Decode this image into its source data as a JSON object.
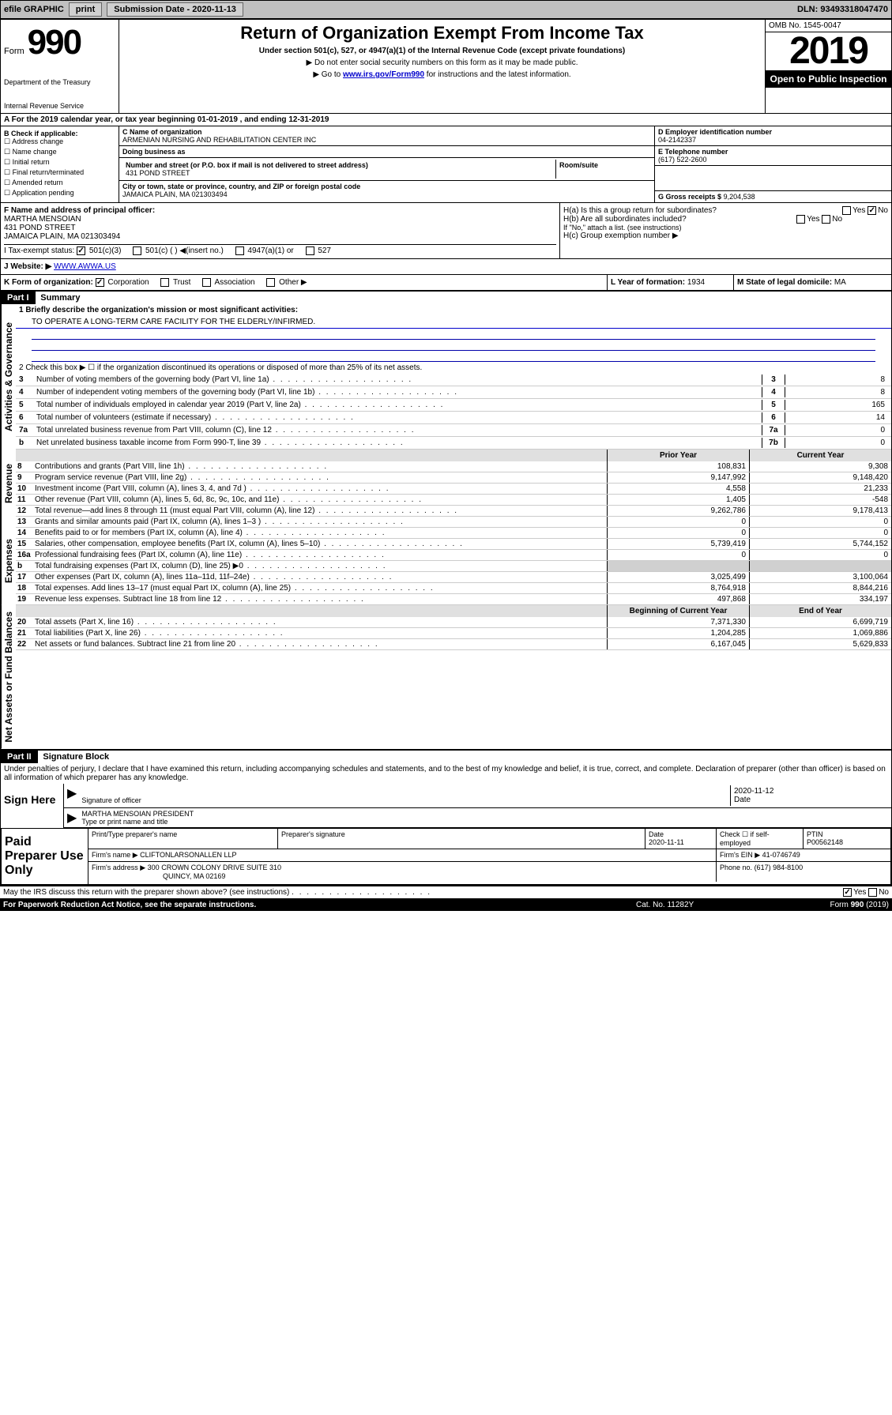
{
  "top_bar": {
    "efile": "efile GRAPHIC",
    "print": "print",
    "sub_date_label": "Submission Date - 2020-11-13",
    "dln": "DLN: 93493318047470"
  },
  "header": {
    "form_prefix": "Form",
    "form_number": "990",
    "dept1": "Department of the Treasury",
    "dept2": "Internal Revenue Service",
    "title": "Return of Organization Exempt From Income Tax",
    "subtitle": "Under section 501(c), 527, or 4947(a)(1) of the Internal Revenue Code (except private foundations)",
    "note1": "▶ Do not enter social security numbers on this form as it may be made public.",
    "note2_pre": "▶ Go to ",
    "note2_link": "www.irs.gov/Form990",
    "note2_post": " for instructions and the latest information.",
    "omb": "OMB No. 1545-0047",
    "year": "2019",
    "open": "Open to Public Inspection"
  },
  "row_a": "A For the 2019 calendar year, or tax year beginning 01-01-2019    , and ending 12-31-2019",
  "section_b": {
    "label": "B Check if applicable:",
    "items": [
      "Address change",
      "Name change",
      "Initial return",
      "Final return/terminated",
      "Amended return",
      "Application pending"
    ]
  },
  "section_c": {
    "name_label": "C Name of organization",
    "name": "ARMENIAN NURSING AND REHABILITATION CENTER INC",
    "dba_label": "Doing business as",
    "dba": "",
    "addr_label": "Number and street (or P.O. box if mail is not delivered to street address)",
    "room_label": "Room/suite",
    "addr": "431 POND STREET",
    "city_label": "City or town, state or province, country, and ZIP or foreign postal code",
    "city": "JAMAICA PLAIN, MA  021303494"
  },
  "section_d": {
    "label": "D Employer identification number",
    "ein": "04-2142337"
  },
  "section_e": {
    "label": "E Telephone number",
    "phone": "(617) 522-2600"
  },
  "section_g": {
    "label": "G Gross receipts $",
    "amount": "9,204,538"
  },
  "section_f": {
    "label": "F Name and address of principal officer:",
    "name": "MARTHA MENSOIAN",
    "addr1": "431 POND STREET",
    "addr2": "JAMAICA PLAIN, MA  021303494"
  },
  "section_h": {
    "a_label": "H(a)  Is this a group return for subordinates?",
    "a_yes": "Yes",
    "a_no": "No",
    "b_label": "H(b)  Are all subordinates included?",
    "b_note": "If \"No,\" attach a list. (see instructions)",
    "c_label": "H(c)  Group exemption number ▶"
  },
  "section_i": {
    "label": "I    Tax-exempt status:",
    "c3": "501(c)(3)",
    "c_other": "501(c) (  ) ◀(insert no.)",
    "a1": "4947(a)(1) or",
    "s527": "527"
  },
  "section_j": {
    "label": "J   Website: ▶",
    "url": "WWW.AWWA.US"
  },
  "section_k": {
    "label": "K Form of organization:",
    "corp": "Corporation",
    "trust": "Trust",
    "assoc": "Association",
    "other": "Other ▶"
  },
  "section_l": {
    "label": "L Year of formation:",
    "year": "1934"
  },
  "section_m": {
    "label": "M State of legal domicile:",
    "state": "MA"
  },
  "part1": {
    "header": "Part I",
    "title": "Summary",
    "tab_gov": "Activities & Governance",
    "tab_rev": "Revenue",
    "tab_exp": "Expenses",
    "tab_net": "Net Assets or Fund Balances",
    "line1_label": "1  Briefly describe the organization's mission or most significant activities:",
    "line1_text": "TO OPERATE A LONG-TERM CARE FACILITY FOR THE ELDERLY/INFIRMED.",
    "line2": "2   Check this box ▶ ☐ if the organization discontinued its operations or disposed of more than 25% of its net assets.",
    "lines_gov": [
      {
        "n": "3",
        "desc": "Number of voting members of the governing body (Part VI, line 1a)",
        "box": "3",
        "val": "8"
      },
      {
        "n": "4",
        "desc": "Number of independent voting members of the governing body (Part VI, line 1b)",
        "box": "4",
        "val": "8"
      },
      {
        "n": "5",
        "desc": "Total number of individuals employed in calendar year 2019 (Part V, line 2a)",
        "box": "5",
        "val": "165"
      },
      {
        "n": "6",
        "desc": "Total number of volunteers (estimate if necessary)",
        "box": "6",
        "val": "14"
      },
      {
        "n": "7a",
        "desc": "Total unrelated business revenue from Part VIII, column (C), line 12",
        "box": "7a",
        "val": "0"
      },
      {
        "n": "b",
        "desc": "Net unrelated business taxable income from Form 990-T, line 39",
        "box": "7b",
        "val": "0"
      }
    ],
    "col_hdr_py": "Prior Year",
    "col_hdr_cy": "Current Year",
    "lines_rev": [
      {
        "n": "8",
        "desc": "Contributions and grants (Part VIII, line 1h)",
        "py": "108,831",
        "cy": "9,308"
      },
      {
        "n": "9",
        "desc": "Program service revenue (Part VIII, line 2g)",
        "py": "9,147,992",
        "cy": "9,148,420"
      },
      {
        "n": "10",
        "desc": "Investment income (Part VIII, column (A), lines 3, 4, and 7d )",
        "py": "4,558",
        "cy": "21,233"
      },
      {
        "n": "11",
        "desc": "Other revenue (Part VIII, column (A), lines 5, 6d, 8c, 9c, 10c, and 11e)",
        "py": "1,405",
        "cy": "-548"
      },
      {
        "n": "12",
        "desc": "Total revenue—add lines 8 through 11 (must equal Part VIII, column (A), line 12)",
        "py": "9,262,786",
        "cy": "9,178,413"
      }
    ],
    "lines_exp": [
      {
        "n": "13",
        "desc": "Grants and similar amounts paid (Part IX, column (A), lines 1–3 )",
        "py": "0",
        "cy": "0"
      },
      {
        "n": "14",
        "desc": "Benefits paid to or for members (Part IX, column (A), line 4)",
        "py": "0",
        "cy": "0"
      },
      {
        "n": "15",
        "desc": "Salaries, other compensation, employee benefits (Part IX, column (A), lines 5–10)",
        "py": "5,739,419",
        "cy": "5,744,152"
      },
      {
        "n": "16a",
        "desc": "Professional fundraising fees (Part IX, column (A), line 11e)",
        "py": "0",
        "cy": "0"
      },
      {
        "n": "b",
        "desc": "Total fundraising expenses (Part IX, column (D), line 25) ▶0",
        "py": "",
        "cy": ""
      },
      {
        "n": "17",
        "desc": "Other expenses (Part IX, column (A), lines 11a–11d, 11f–24e)",
        "py": "3,025,499",
        "cy": "3,100,064"
      },
      {
        "n": "18",
        "desc": "Total expenses. Add lines 13–17 (must equal Part IX, column (A), line 25)",
        "py": "8,764,918",
        "cy": "8,844,216"
      },
      {
        "n": "19",
        "desc": "Revenue less expenses. Subtract line 18 from line 12",
        "py": "497,868",
        "cy": "334,197"
      }
    ],
    "col_hdr_by": "Beginning of Current Year",
    "col_hdr_ey": "End of Year",
    "lines_net": [
      {
        "n": "20",
        "desc": "Total assets (Part X, line 16)",
        "py": "7,371,330",
        "cy": "6,699,719"
      },
      {
        "n": "21",
        "desc": "Total liabilities (Part X, line 26)",
        "py": "1,204,285",
        "cy": "1,069,886"
      },
      {
        "n": "22",
        "desc": "Net assets or fund balances. Subtract line 21 from line 20",
        "py": "6,167,045",
        "cy": "5,629,833"
      }
    ]
  },
  "part2": {
    "header": "Part II",
    "title": "Signature Block",
    "decl": "Under penalties of perjury, I declare that I have examined this return, including accompanying schedules and statements, and to the best of my knowledge and belief, it is true, correct, and complete. Declaration of preparer (other than officer) is based on all information of which preparer has any knowledge.",
    "sign_here": "Sign Here",
    "sig_officer": "Signature of officer",
    "sig_date": "2020-11-12",
    "sig_date_label": "Date",
    "officer_name": "MARTHA MENSOIAN  PRESIDENT",
    "type_label": "Type or print name and title",
    "paid_label": "Paid Preparer Use Only",
    "prep_name_label": "Print/Type preparer's name",
    "prep_sig_label": "Preparer's signature",
    "prep_date_label": "Date",
    "prep_date": "2020-11-11",
    "self_emp": "Check ☐ if self-employed",
    "ptin_label": "PTIN",
    "ptin": "P00562148",
    "firm_name_label": "Firm's name   ▶",
    "firm_name": "CLIFTONLARSONALLEN LLP",
    "firm_ein_label": "Firm's EIN ▶",
    "firm_ein": "41-0746749",
    "firm_addr_label": "Firm's address ▶",
    "firm_addr": "300 CROWN COLONY DRIVE SUITE 310",
    "firm_city": "QUINCY, MA  02169",
    "firm_phone_label": "Phone no.",
    "firm_phone": "(617) 984-8100",
    "discuss": "May the IRS discuss this return with the preparer shown above? (see instructions)",
    "discuss_yes": "Yes",
    "discuss_no": "No"
  },
  "footer": {
    "paperwork": "For Paperwork Reduction Act Notice, see the separate instructions.",
    "cat": "Cat. No. 11282Y",
    "form": "Form 990 (2019)"
  },
  "colors": {
    "black": "#000000",
    "link": "#0000cc",
    "shade": "#d0d0d0"
  }
}
